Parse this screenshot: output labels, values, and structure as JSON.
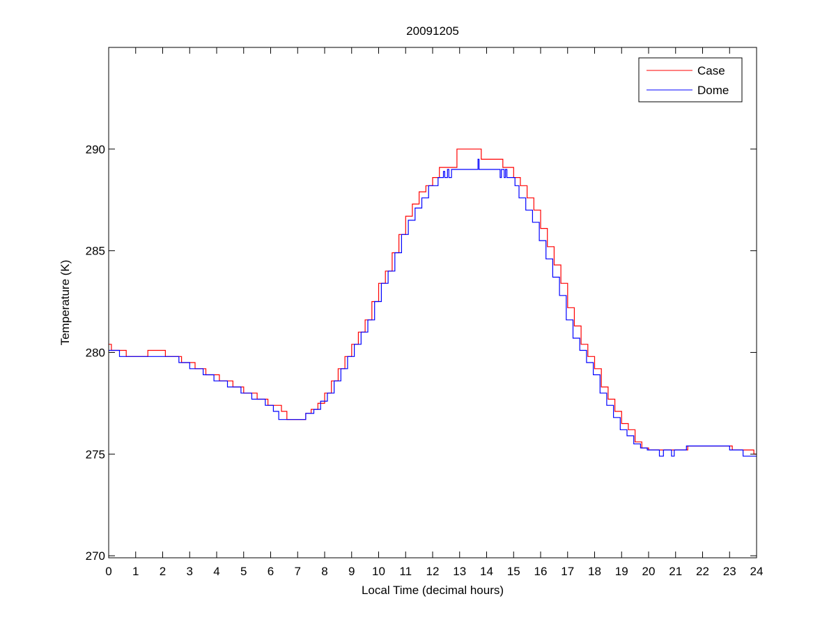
{
  "chart_data": {
    "type": "line",
    "title": "20091205",
    "xlabel": "Local Time (decimal hours)",
    "ylabel": "Temperature (K)",
    "xlim": [
      0,
      24
    ],
    "ylim": [
      269.9,
      295
    ],
    "xticks": [
      0,
      1,
      2,
      3,
      4,
      5,
      6,
      7,
      8,
      9,
      10,
      11,
      12,
      13,
      14,
      15,
      16,
      17,
      18,
      19,
      20,
      21,
      22,
      23,
      24
    ],
    "yticks": [
      270,
      275,
      280,
      285,
      290
    ],
    "grid": false,
    "legend_position": "top-right",
    "interpolation": "step",
    "series": [
      {
        "name": "Case",
        "color": "#ff0000",
        "points": [
          [
            0,
            280.4
          ],
          [
            0.1,
            280.1
          ],
          [
            0.65,
            279.8
          ],
          [
            1.45,
            280.1
          ],
          [
            2.1,
            279.8
          ],
          [
            2.7,
            279.5
          ],
          [
            3.2,
            279.2
          ],
          [
            3.6,
            278.9
          ],
          [
            4.1,
            278.6
          ],
          [
            4.6,
            278.3
          ],
          [
            5.0,
            278.0
          ],
          [
            5.5,
            277.7
          ],
          [
            5.9,
            277.4
          ],
          [
            6.4,
            277.1
          ],
          [
            6.6,
            276.7
          ],
          [
            7.3,
            277.0
          ],
          [
            7.5,
            277.2
          ],
          [
            7.75,
            277.5
          ],
          [
            8.0,
            278.0
          ],
          [
            8.25,
            278.6
          ],
          [
            8.5,
            279.2
          ],
          [
            8.75,
            279.8
          ],
          [
            9.0,
            280.4
          ],
          [
            9.25,
            281.0
          ],
          [
            9.5,
            281.6
          ],
          [
            9.75,
            282.5
          ],
          [
            10.0,
            283.4
          ],
          [
            10.25,
            284.0
          ],
          [
            10.5,
            284.9
          ],
          [
            10.75,
            285.8
          ],
          [
            11.0,
            286.7
          ],
          [
            11.25,
            287.3
          ],
          [
            11.5,
            287.9
          ],
          [
            11.75,
            288.2
          ],
          [
            12.0,
            288.6
          ],
          [
            12.25,
            289.1
          ],
          [
            12.9,
            290.0
          ],
          [
            13.8,
            289.5
          ],
          [
            14.6,
            289.1
          ],
          [
            15.0,
            288.6
          ],
          [
            15.25,
            288.2
          ],
          [
            15.5,
            287.6
          ],
          [
            15.75,
            287.0
          ],
          [
            16.0,
            286.1
          ],
          [
            16.25,
            285.2
          ],
          [
            16.5,
            284.3
          ],
          [
            16.75,
            283.4
          ],
          [
            17.0,
            282.2
          ],
          [
            17.25,
            281.3
          ],
          [
            17.5,
            280.4
          ],
          [
            17.75,
            279.8
          ],
          [
            18.0,
            279.2
          ],
          [
            18.25,
            278.3
          ],
          [
            18.5,
            277.7
          ],
          [
            18.75,
            277.1
          ],
          [
            19.0,
            276.5
          ],
          [
            19.25,
            276.2
          ],
          [
            19.5,
            275.6
          ],
          [
            19.75,
            275.3
          ],
          [
            20.0,
            275.2
          ],
          [
            21.45,
            275.4
          ],
          [
            23.1,
            275.2
          ],
          [
            23.9,
            275.0
          ],
          [
            24.0,
            275.0
          ]
        ]
      },
      {
        "name": "Dome",
        "color": "#0000ff",
        "points": [
          [
            0,
            280.1
          ],
          [
            0.4,
            279.8
          ],
          [
            2.6,
            279.5
          ],
          [
            3.0,
            279.2
          ],
          [
            3.5,
            278.9
          ],
          [
            3.9,
            278.6
          ],
          [
            4.4,
            278.3
          ],
          [
            4.9,
            278.0
          ],
          [
            5.3,
            277.7
          ],
          [
            5.8,
            277.4
          ],
          [
            6.1,
            277.1
          ],
          [
            6.3,
            276.7
          ],
          [
            7.3,
            277.0
          ],
          [
            7.6,
            277.2
          ],
          [
            7.85,
            277.6
          ],
          [
            8.1,
            278.0
          ],
          [
            8.35,
            278.6
          ],
          [
            8.6,
            279.2
          ],
          [
            8.85,
            279.8
          ],
          [
            9.1,
            280.4
          ],
          [
            9.35,
            281.0
          ],
          [
            9.6,
            281.6
          ],
          [
            9.85,
            282.5
          ],
          [
            10.1,
            283.4
          ],
          [
            10.35,
            284.0
          ],
          [
            10.6,
            284.9
          ],
          [
            10.85,
            285.8
          ],
          [
            11.1,
            286.5
          ],
          [
            11.35,
            287.1
          ],
          [
            11.6,
            287.6
          ],
          [
            11.85,
            288.2
          ],
          [
            12.2,
            288.6
          ],
          [
            12.4,
            288.9
          ],
          [
            12.45,
            288.6
          ],
          [
            12.55,
            289.0
          ],
          [
            12.6,
            288.6
          ],
          [
            12.7,
            289.0
          ],
          [
            13.68,
            289.5
          ],
          [
            13.72,
            289.0
          ],
          [
            14.5,
            288.6
          ],
          [
            14.55,
            289.0
          ],
          [
            14.65,
            288.6
          ],
          [
            14.7,
            289.0
          ],
          [
            14.75,
            288.6
          ],
          [
            15.05,
            288.2
          ],
          [
            15.2,
            287.6
          ],
          [
            15.45,
            287.0
          ],
          [
            15.7,
            286.4
          ],
          [
            15.95,
            285.5
          ],
          [
            16.2,
            284.6
          ],
          [
            16.45,
            283.7
          ],
          [
            16.7,
            282.8
          ],
          [
            16.95,
            281.6
          ],
          [
            17.2,
            280.7
          ],
          [
            17.45,
            280.1
          ],
          [
            17.7,
            279.5
          ],
          [
            17.95,
            278.9
          ],
          [
            18.2,
            278.0
          ],
          [
            18.45,
            277.4
          ],
          [
            18.7,
            276.8
          ],
          [
            18.95,
            276.2
          ],
          [
            19.2,
            275.9
          ],
          [
            19.45,
            275.5
          ],
          [
            19.7,
            275.3
          ],
          [
            19.95,
            275.2
          ],
          [
            20.4,
            274.9
          ],
          [
            20.55,
            275.2
          ],
          [
            20.85,
            274.9
          ],
          [
            20.95,
            275.2
          ],
          [
            21.4,
            275.4
          ],
          [
            23.0,
            275.2
          ],
          [
            23.5,
            274.9
          ],
          [
            24.0,
            274.9
          ]
        ]
      }
    ]
  }
}
